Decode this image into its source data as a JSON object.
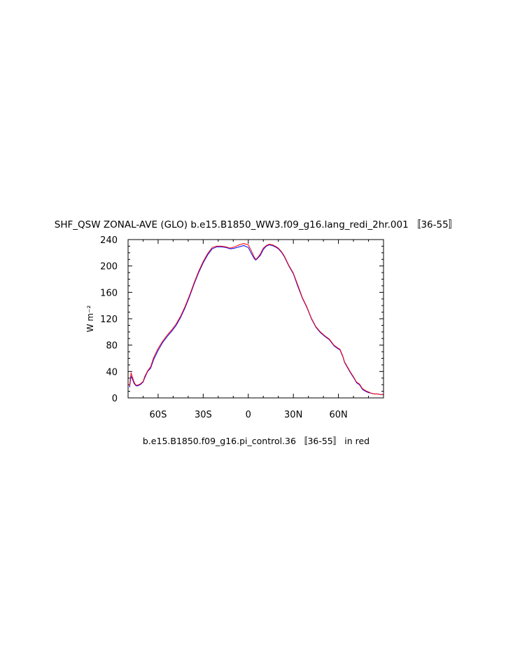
{
  "chart_data": {
    "type": "line",
    "title": "SHF_QSW ZONAL-AVE (GLO) b.e15.B1850_WW3.f09_g16.lang_redi_2hr.001 〚36-55〛",
    "subtitle": "b.e15.B1850.f09_g16.pi_control.36 〚36-55〛 in red",
    "xlabel": "",
    "ylabel": "W m⁻²",
    "xlim": [
      -80,
      90
    ],
    "ylim": [
      0,
      240
    ],
    "xticks": [
      -60,
      -30,
      0,
      30,
      60
    ],
    "xtick_labels": [
      "60S",
      "30S",
      "0",
      "30N",
      "60N"
    ],
    "yticks": [
      0,
      40,
      80,
      120,
      160,
      200,
      240
    ],
    "ytick_labels": [
      "0",
      "40",
      "80",
      "120",
      "160",
      "200",
      "240"
    ],
    "grid": false,
    "series": [
      {
        "color": "#0000ff",
        "x": [
          -79,
          -78,
          -77,
          -76,
          -75,
          -74,
          -72,
          -70,
          -69,
          -67,
          -65,
          -63,
          -60,
          -57,
          -54,
          -51,
          -48,
          -45,
          -42,
          -39,
          -36,
          -33,
          -30,
          -27,
          -24,
          -21,
          -18,
          -15,
          -12,
          -9,
          -6,
          -3,
          0,
          2,
          4,
          5,
          6,
          8,
          10,
          12,
          14,
          16,
          18,
          20,
          22,
          24,
          27,
          30,
          33,
          36,
          39,
          42,
          45,
          48,
          51,
          54,
          57,
          60,
          61,
          63,
          64,
          66,
          68,
          70,
          72,
          74,
          76,
          78,
          80,
          82,
          84,
          86,
          88,
          90
        ],
        "y": [
          16,
          33,
          28,
          22,
          19,
          18,
          20,
          24,
          30,
          40,
          45,
          58,
          72,
          84,
          93,
          101,
          110,
          122,
          137,
          154,
          173,
          190,
          205,
          217,
          226,
          229,
          229,
          228,
          226,
          227,
          229,
          231,
          228,
          219,
          211,
          209,
          211,
          216,
          225,
          230,
          232,
          231,
          229,
          226,
          221,
          214,
          200,
          188,
          169,
          151,
          137,
          120,
          107,
          99,
          93,
          88,
          79,
          74,
          73,
          62,
          54,
          46,
          38,
          31,
          23,
          20,
          13,
          10,
          8,
          7,
          6,
          6,
          5,
          5
        ]
      },
      {
        "color": "#ff0000",
        "x": [
          -79,
          -78,
          -77,
          -76,
          -75,
          -74,
          -72,
          -70,
          -69,
          -67,
          -65,
          -63,
          -60,
          -57,
          -54,
          -51,
          -48,
          -45,
          -42,
          -39,
          -36,
          -33,
          -30,
          -27,
          -24,
          -21,
          -18,
          -15,
          -12,
          -9,
          -6,
          -3,
          0,
          2,
          4,
          5,
          6,
          8,
          10,
          12,
          14,
          16,
          18,
          20,
          22,
          24,
          27,
          30,
          33,
          36,
          39,
          42,
          45,
          48,
          51,
          54,
          57,
          60,
          61,
          63,
          64,
          66,
          68,
          70,
          72,
          74,
          76,
          78,
          80,
          82,
          84,
          86,
          88,
          90
        ],
        "y": [
          18,
          38,
          31,
          24,
          20,
          19,
          21,
          25,
          32,
          41,
          47,
          61,
          75,
          86,
          95,
          103,
          112,
          124,
          139,
          156,
          175,
          192,
          207,
          219,
          228,
          230,
          230,
          229,
          227,
          229,
          232,
          234,
          232,
          223,
          213,
          210,
          212,
          218,
          227,
          231,
          233,
          232,
          230,
          227,
          222,
          215,
          201,
          189,
          171,
          152,
          138,
          121,
          108,
          100,
          94,
          89,
          80,
          75,
          74,
          63,
          55,
          47,
          39,
          32,
          24,
          21,
          14,
          11,
          9,
          7,
          6,
          6,
          5,
          5
        ]
      }
    ]
  }
}
